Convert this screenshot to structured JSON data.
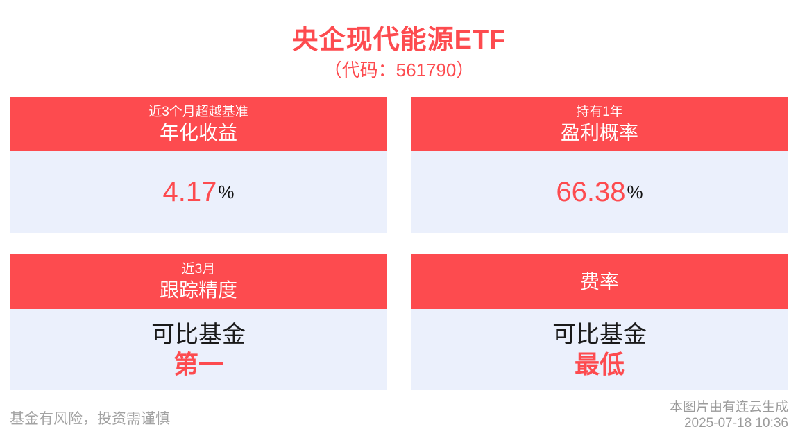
{
  "colors": {
    "accent_red": "#fd4b4f",
    "card_body_bg": "#ebf0fc",
    "unit_text": "#111111",
    "footer_gray": "#a3a3a3"
  },
  "header": {
    "title": "央企现代能源ETF",
    "subtitle": "（代码：561790）"
  },
  "cards": [
    {
      "tag": "近3个月超越基准",
      "metric": "年化收益",
      "value": "4.17",
      "unit": "%"
    },
    {
      "tag": "持有1年",
      "metric": "盈利概率",
      "value": "66.38",
      "unit": "%"
    },
    {
      "tag": "近3月",
      "metric": "跟踪精度",
      "value_line1": "可比基金",
      "value_line2": "第一"
    },
    {
      "metric": "费率",
      "value_line1": "可比基金",
      "value_line2": "最低"
    }
  ],
  "footer": {
    "disclaimer": "基金有风险，投资需谨慎",
    "source": "本图片由有连云生成",
    "timestamp": "2025-07-18 10:36"
  }
}
